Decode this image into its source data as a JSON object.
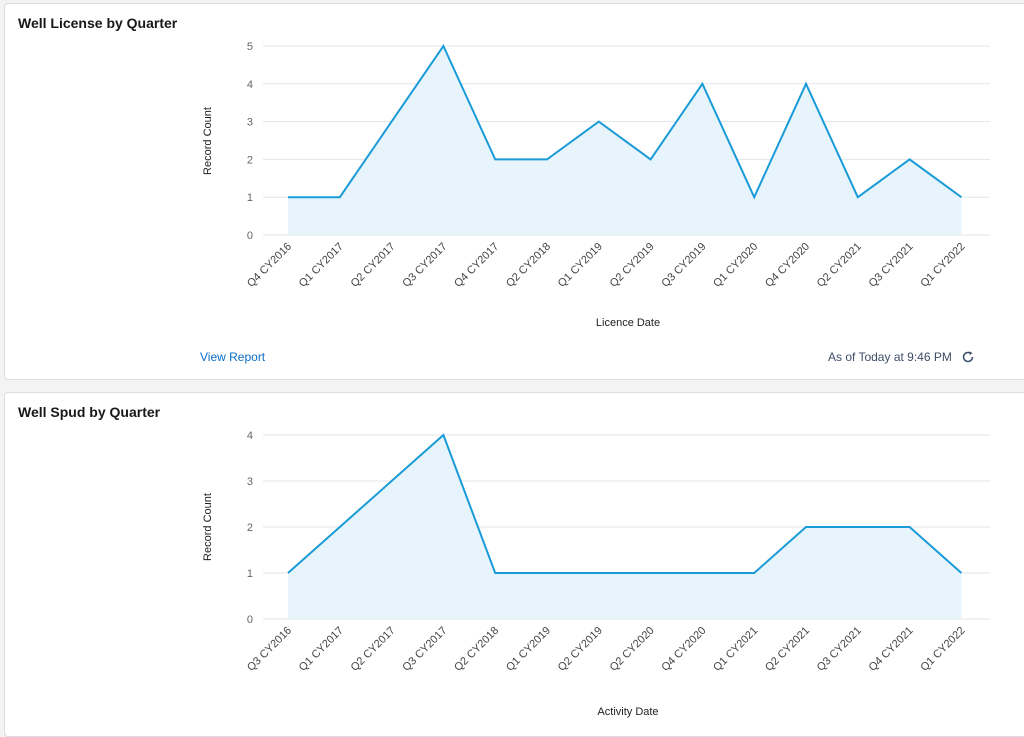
{
  "colors": {
    "line": "#1a9bd7",
    "fill": "#e8f4fc",
    "grid": "#e3e6ea",
    "link": "#0b6dc6"
  },
  "cards": [
    {
      "title": "Well License by Quarter",
      "footer": {
        "view_report": "View Report",
        "as_of": "As of Today at 9:46 PM",
        "refresh_icon": "refresh-icon"
      }
    },
    {
      "title": "Well Spud by Quarter"
    }
  ],
  "chart_data": [
    {
      "type": "area",
      "title": "Well License by Quarter",
      "xlabel": "Licence Date",
      "ylabel": "Record Count",
      "ylim": [
        0,
        5
      ],
      "yticks": [
        0,
        1,
        2,
        3,
        4,
        5
      ],
      "grid": true,
      "categories": [
        "Q4 CY2016",
        "Q1 CY2017",
        "Q2 CY2017",
        "Q3 CY2017",
        "Q4 CY2017",
        "Q2 CY2018",
        "Q1 CY2019",
        "Q2 CY2019",
        "Q3 CY2019",
        "Q1 CY2020",
        "Q4 CY2020",
        "Q2 CY2021",
        "Q3 CY2021",
        "Q1 CY2022"
      ],
      "values": [
        1,
        1,
        3,
        5,
        2,
        2,
        3,
        2,
        4,
        1,
        4,
        1,
        2,
        1
      ]
    },
    {
      "type": "area",
      "title": "Well Spud by Quarter",
      "xlabel": "Activity Date",
      "ylabel": "Record Count",
      "ylim": [
        0,
        4
      ],
      "yticks": [
        0,
        1,
        2,
        3,
        4
      ],
      "grid": true,
      "categories": [
        "Q3 CY2016",
        "Q1 CY2017",
        "Q2 CY2017",
        "Q3 CY2017",
        "Q2 CY2018",
        "Q1 CY2019",
        "Q2 CY2019",
        "Q2 CY2020",
        "Q4 CY2020",
        "Q1 CY2021",
        "Q2 CY2021",
        "Q3 CY2021",
        "Q4 CY2021",
        "Q1 CY2022"
      ],
      "values": [
        1,
        2,
        3,
        4,
        1,
        1,
        1,
        1,
        1,
        1,
        2,
        2,
        2,
        1
      ]
    }
  ]
}
